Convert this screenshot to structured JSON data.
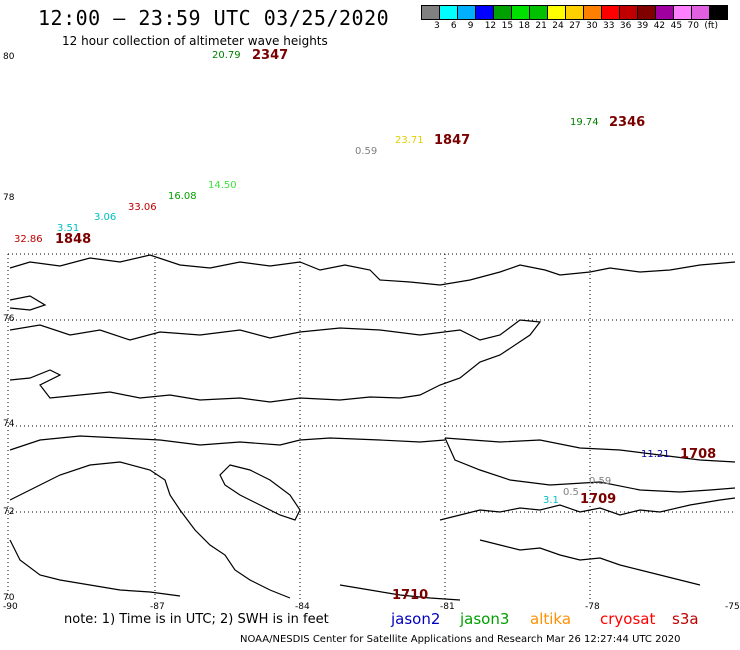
{
  "header": {
    "title": "12:00 — 23:59 UTC 03/25/2020",
    "subtitle": "12 hour collection of altimeter wave heights"
  },
  "scale": {
    "colors": [
      "#808080",
      "#00ffff",
      "#00b0ff",
      "#0000ff",
      "#00a000",
      "#00e000",
      "#00c000",
      "#ffff00",
      "#ffd000",
      "#ff8000",
      "#ff0000",
      "#c00000",
      "#800000",
      "#a000a0",
      "#ff80ff",
      "#e060e0",
      "#000000"
    ],
    "labels": [
      "3",
      "6",
      "9",
      "12",
      "15",
      "18",
      "21",
      "24",
      "27",
      "30",
      "33",
      "36",
      "39",
      "42",
      "45",
      "70",
      "(ft)"
    ]
  },
  "axes": {
    "lat_labels": [
      "80",
      "78",
      "76",
      "74",
      "72",
      "70"
    ],
    "lon_labels": [
      "-90",
      "-87",
      "-84",
      "-81",
      "-78",
      "-75"
    ]
  },
  "wave_heights": [
    {
      "value": "20.79",
      "color": "#008000"
    },
    {
      "value": "19.74",
      "color": "#008000"
    },
    {
      "value": "23.71",
      "color": "#e0d000"
    },
    {
      "value": "0.59",
      "color": "#808080"
    },
    {
      "value": "14.50",
      "color": "#40e040"
    },
    {
      "value": "16.08",
      "color": "#00a000"
    },
    {
      "value": "33.06",
      "color": "#c00000"
    },
    {
      "value": "3.06",
      "color": "#00c0c0"
    },
    {
      "value": "3.51",
      "color": "#00c0c0"
    },
    {
      "value": "32.86",
      "color": "#c00000"
    },
    {
      "value": "11.21",
      "color": "#0000a0"
    },
    {
      "value": "0.59",
      "color": "#808080"
    },
    {
      "value": "0.5",
      "color": "#808080"
    },
    {
      "value": "3.1",
      "color": "#00c0c0"
    }
  ],
  "pass_times": [
    "2347",
    "2346",
    "1847",
    "1848",
    "1708",
    "1709",
    "1710"
  ],
  "note": "note: 1) Time is in UTC; 2) SWH is in feet",
  "satellites": [
    {
      "name": "jason2",
      "color": "#0000c0"
    },
    {
      "name": "jason3",
      "color": "#00a000"
    },
    {
      "name": "altika",
      "color": "#ff9000"
    },
    {
      "name": "cryosat",
      "color": "#ff0000"
    },
    {
      "name": "s3a",
      "color": "#c00000"
    }
  ],
  "footer": "NOAA/NESDIS Center for Satellite Applications and Research    Mar 26 12:27:44 UTC 2020"
}
